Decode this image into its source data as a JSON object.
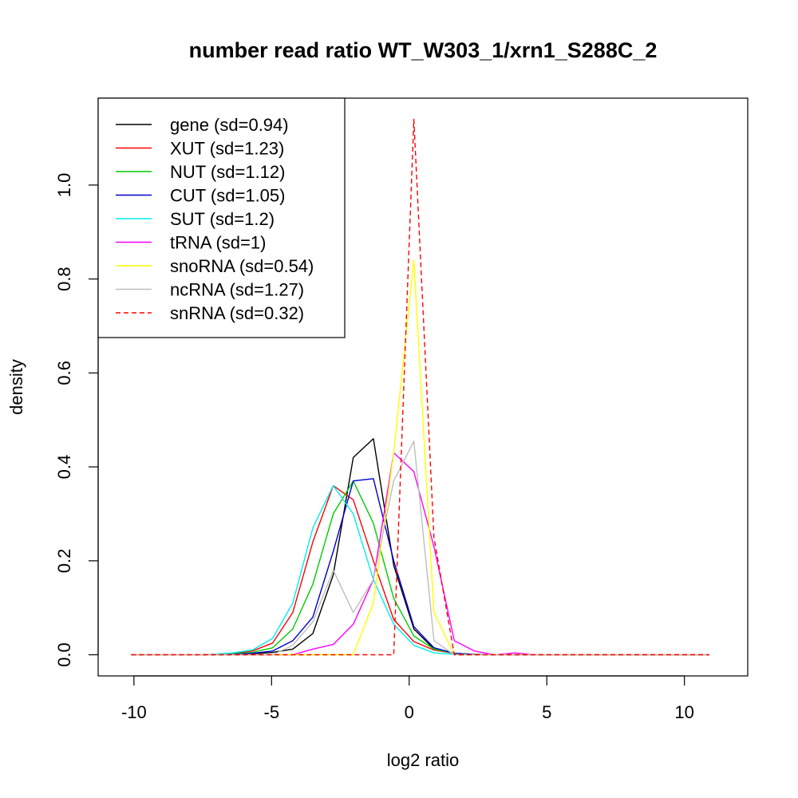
{
  "chart_data": {
    "type": "line",
    "title": "number read ratio WT_W303_1/xrn1_S288C_2",
    "xlabel": "log2 ratio",
    "ylabel": "density",
    "xlim": [
      -11.3,
      12.3
    ],
    "ylim": [
      -0.045,
      1.185
    ],
    "x_ticks": [
      -10,
      -5,
      0,
      5,
      10
    ],
    "y_ticks": [
      0.0,
      0.2,
      0.4,
      0.6,
      0.8,
      1.0
    ],
    "x_tick_labels": [
      "-10",
      "-5",
      "0",
      "5",
      "10"
    ],
    "y_tick_labels": [
      "0.0",
      "0.2",
      "0.4",
      "0.6",
      "0.8",
      "1.0"
    ],
    "legend_position": "top-left",
    "x": [
      -10.1,
      -9.36,
      -8.63,
      -7.9,
      -7.16,
      -6.43,
      -5.7,
      -4.96,
      -4.23,
      -3.5,
      -2.76,
      -2.03,
      -1.3,
      -0.56,
      0.17,
      0.9,
      1.64,
      2.37,
      3.1,
      3.84,
      4.57,
      5.3,
      6.04,
      6.77,
      7.5,
      8.24,
      8.97,
      9.7,
      10.44,
      10.9
    ],
    "series": [
      {
        "name": "gene (sd=0.94)",
        "color": "#000000",
        "dash": false,
        "values": [
          0,
          0,
          0,
          0,
          0,
          0.001,
          0.002,
          0.005,
          0.012,
          0.045,
          0.17,
          0.42,
          0.46,
          0.19,
          0.055,
          0.012,
          0.003,
          0.001,
          0,
          0,
          0,
          0,
          0,
          0,
          0,
          0,
          0,
          0,
          0,
          0
        ]
      },
      {
        "name": "XUT (sd=1.23)",
        "color": "#ff0000",
        "dash": false,
        "values": [
          0,
          0,
          0,
          0,
          0.001,
          0.003,
          0.008,
          0.025,
          0.09,
          0.24,
          0.36,
          0.33,
          0.2,
          0.075,
          0.028,
          0.01,
          0.003,
          0.001,
          0,
          0,
          0,
          0,
          0,
          0,
          0,
          0,
          0,
          0,
          0,
          0
        ]
      },
      {
        "name": "NUT (sd=1.12)",
        "color": "#00cc00",
        "dash": false,
        "values": [
          0,
          0,
          0,
          0,
          0,
          0.002,
          0.005,
          0.015,
          0.055,
          0.15,
          0.3,
          0.37,
          0.28,
          0.12,
          0.04,
          0.012,
          0.003,
          0.001,
          0,
          0,
          0,
          0,
          0,
          0,
          0,
          0,
          0,
          0,
          0,
          0
        ]
      },
      {
        "name": "CUT (sd=1.05)",
        "color": "#0000cc",
        "dash": false,
        "values": [
          0,
          0,
          0,
          0,
          0,
          0.001,
          0.003,
          0.008,
          0.03,
          0.08,
          0.22,
          0.37,
          0.375,
          0.2,
          0.06,
          0.015,
          0.003,
          0.001,
          0,
          0,
          0,
          0,
          0,
          0,
          0,
          0,
          0,
          0,
          0,
          0
        ]
      },
      {
        "name": "SUT (sd=1.2)",
        "color": "#00eeee",
        "dash": false,
        "values": [
          0,
          0,
          0,
          0,
          0.001,
          0.004,
          0.01,
          0.035,
          0.11,
          0.27,
          0.36,
          0.3,
          0.16,
          0.065,
          0.02,
          0.004,
          0.001,
          0,
          0,
          0,
          0,
          0,
          0,
          0,
          0,
          0,
          0,
          0,
          0,
          0
        ]
      },
      {
        "name": "tRNA (sd=1)",
        "color": "#ff00ff",
        "dash": false,
        "values": [
          0,
          0,
          0,
          0,
          0,
          0,
          0,
          0,
          0,
          0.012,
          0.022,
          0.065,
          0.16,
          0.43,
          0.39,
          0.23,
          0.03,
          0.008,
          0,
          0.004,
          0,
          0,
          0,
          0,
          0,
          0,
          0,
          0,
          0,
          0
        ]
      },
      {
        "name": "snoRNA (sd=0.54)",
        "color": "#ffff00",
        "dash": false,
        "values": [
          0,
          0,
          0,
          0,
          0,
          0,
          0,
          0,
          0,
          0,
          0,
          0,
          0.11,
          0.43,
          0.84,
          0.09,
          0,
          0,
          0,
          0,
          0,
          0,
          0,
          0,
          0,
          0,
          0,
          0,
          0,
          0
        ]
      },
      {
        "name": "ncRNA (sd=1.27)",
        "color": "#bebebe",
        "dash": false,
        "values": [
          0,
          0,
          0,
          0,
          0,
          0,
          0,
          0,
          0.02,
          0.07,
          0.18,
          0.09,
          0.16,
          0.37,
          0.455,
          0.03,
          0,
          0,
          0,
          0,
          0,
          0,
          0,
          0,
          0,
          0,
          0,
          0,
          0,
          0
        ]
      },
      {
        "name": "snRNA (sd=0.32)",
        "color": "#ff0000",
        "dash": true,
        "values": [
          0,
          0,
          0,
          0,
          0,
          0,
          0,
          0,
          0,
          0,
          0,
          0,
          0,
          0,
          1.14,
          0.25,
          0,
          0,
          0,
          0,
          0,
          0,
          0,
          0,
          0,
          0,
          0,
          0,
          0,
          0
        ]
      }
    ]
  }
}
